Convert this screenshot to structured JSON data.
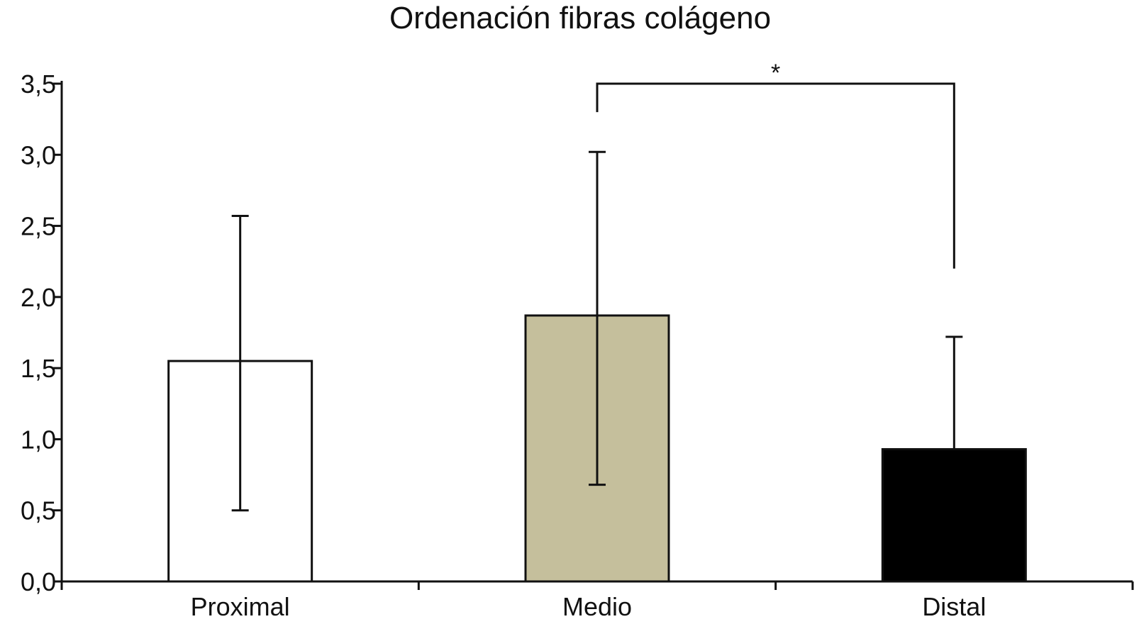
{
  "chart_data": {
    "type": "bar",
    "title": "Ordenación fibras colágeno",
    "xlabel": "",
    "ylabel": "",
    "categories": [
      "Proximal",
      "Medio",
      "Distal"
    ],
    "values": [
      1.55,
      1.87,
      0.93
    ],
    "error_upper": [
      2.57,
      3.02,
      1.72
    ],
    "error_lower": [
      0.5,
      0.68,
      0.93
    ],
    "colors": [
      "#ffffff",
      "#c5bf9c",
      "#000000"
    ],
    "ylim": [
      0,
      3.5
    ],
    "yticks": [
      0,
      0.5,
      1.0,
      1.5,
      2.0,
      2.5,
      3.0,
      3.5
    ],
    "ytick_labels": [
      "0,0",
      "0,5",
      "1,0",
      "1,5",
      "2,0",
      "2,5",
      "3,0",
      "3,5"
    ],
    "grid": false,
    "significance": {
      "from": "Medio",
      "to": "Distal",
      "label": "*",
      "bracket_y": 3.5,
      "left_drop_to": 3.3,
      "right_drop_to": 2.2
    }
  }
}
